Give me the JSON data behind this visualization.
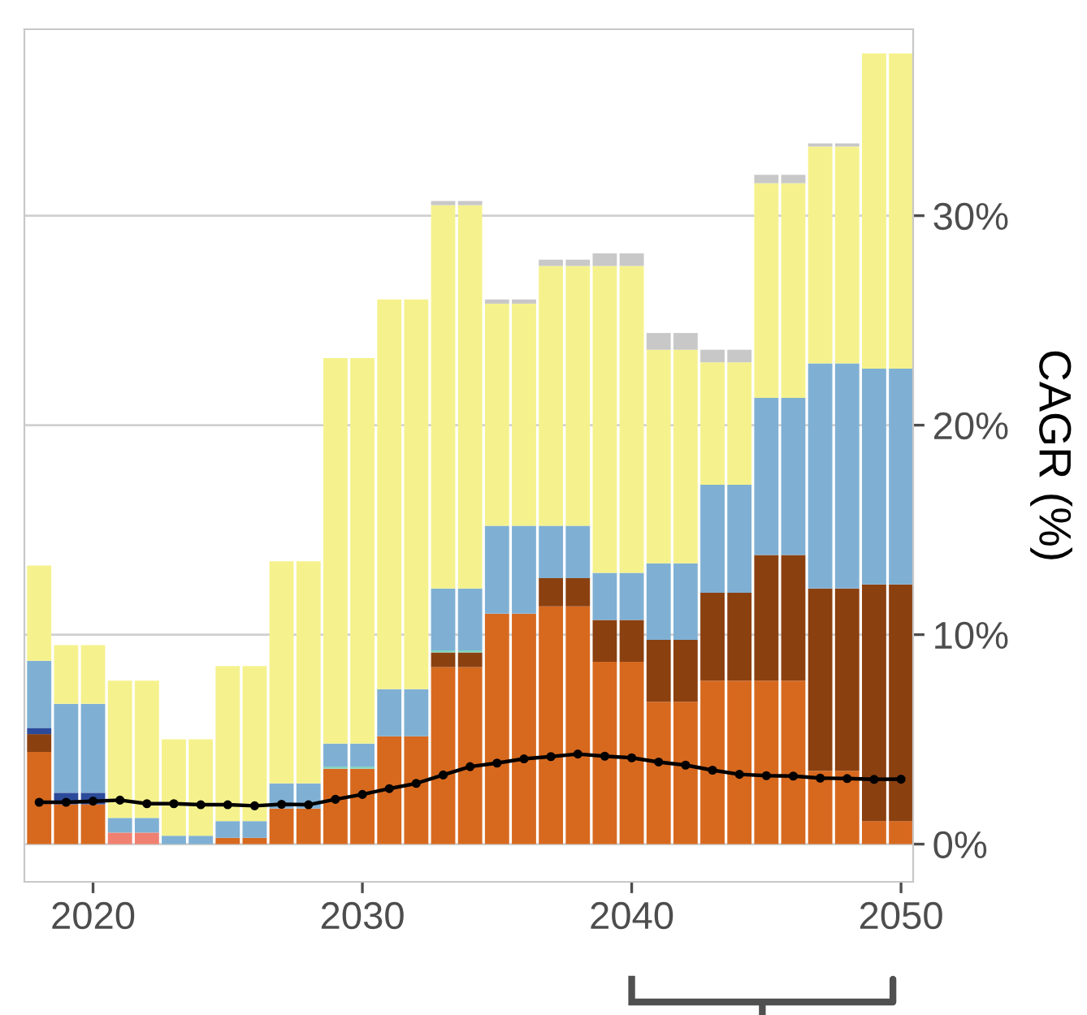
{
  "chart_data": {
    "type": "bar",
    "stacked": true,
    "ylabel": "CAGR (%)",
    "x": [
      2018,
      2019,
      2020,
      2021,
      2022,
      2023,
      2024,
      2025,
      2026,
      2027,
      2028,
      2029,
      2030,
      2031,
      2032,
      2033,
      2034,
      2035,
      2036,
      2037,
      2038,
      2039,
      2040,
      2041,
      2042,
      2043,
      2044,
      2045,
      2046,
      2047,
      2048,
      2049,
      2050
    ],
    "xlim": [
      2017.45,
      2050.45
    ],
    "xticks": [
      2020,
      2030,
      2040,
      2050
    ],
    "ylim": [
      -1.8,
      38.9
    ],
    "yticks": [
      {
        "value": 0,
        "label": "0%"
      },
      {
        "value": 10,
        "label": "10%"
      },
      {
        "value": 20,
        "label": "20%"
      },
      {
        "value": 30,
        "label": "30%"
      }
    ],
    "grid": "y",
    "series": [
      {
        "color": "#d7691f",
        "values": [
          4.4,
          1.9,
          1.9,
          null,
          null,
          null,
          null,
          0.3,
          0.3,
          1.7,
          1.7,
          3.6,
          3.6,
          5.15,
          5.15,
          8.45,
          8.45,
          11.0,
          11.0,
          11.35,
          11.35,
          8.7,
          8.7,
          6.8,
          6.8,
          7.8,
          7.8,
          7.8,
          7.8,
          3.5,
          3.5,
          1.1,
          1.1
        ]
      },
      {
        "color": "#f08070",
        "values": [
          null,
          null,
          null,
          0.55,
          0.55,
          null,
          null,
          null,
          null,
          null,
          null,
          null,
          null,
          null,
          null,
          null,
          null,
          null,
          null,
          null,
          null,
          null,
          null,
          null,
          null,
          null,
          null,
          null,
          null,
          null,
          null,
          null,
          null
        ]
      },
      {
        "color": "#8b4010",
        "values": [
          0.85,
          null,
          null,
          null,
          null,
          null,
          null,
          null,
          null,
          null,
          null,
          null,
          null,
          null,
          null,
          0.7,
          0.7,
          null,
          null,
          1.35,
          1.35,
          2.0,
          2.0,
          2.95,
          2.95,
          4.2,
          4.2,
          6.0,
          6.0,
          8.7,
          8.7,
          11.3,
          11.3
        ]
      },
      {
        "color": "#7fd4c0",
        "values": [
          null,
          null,
          null,
          null,
          null,
          null,
          null,
          null,
          null,
          null,
          null,
          0.1,
          0.1,
          null,
          null,
          0.1,
          0.1,
          null,
          null,
          null,
          null,
          null,
          null,
          null,
          null,
          null,
          null,
          null,
          null,
          null,
          null,
          null,
          null
        ]
      },
      {
        "color": "#2b4a9a",
        "values": [
          0.3,
          0.55,
          0.55,
          null,
          null,
          null,
          null,
          null,
          null,
          null,
          null,
          null,
          null,
          null,
          null,
          null,
          null,
          null,
          null,
          null,
          null,
          null,
          null,
          null,
          null,
          null,
          null,
          null,
          null,
          null,
          null,
          null,
          null
        ]
      },
      {
        "color": "#7fb0d4",
        "values": [
          3.2,
          4.25,
          4.25,
          0.7,
          0.7,
          0.4,
          0.4,
          0.8,
          0.8,
          1.2,
          1.2,
          1.1,
          1.1,
          2.25,
          2.25,
          2.95,
          2.95,
          4.2,
          4.2,
          2.5,
          2.5,
          2.25,
          2.25,
          3.65,
          3.65,
          5.15,
          5.15,
          7.5,
          7.5,
          10.75,
          10.75,
          10.3,
          10.3
        ]
      },
      {
        "color": "#f5f28d",
        "values": [
          4.55,
          2.8,
          2.8,
          6.55,
          6.55,
          4.6,
          4.6,
          7.4,
          7.4,
          10.6,
          10.6,
          18.4,
          18.4,
          18.6,
          18.6,
          18.3,
          18.3,
          10.6,
          10.6,
          12.4,
          12.4,
          14.65,
          14.65,
          10.2,
          10.2,
          5.85,
          5.85,
          10.25,
          10.25,
          10.35,
          10.35,
          15.05,
          15.05
        ]
      },
      {
        "color": "#c8c8c8",
        "values": [
          null,
          null,
          null,
          null,
          null,
          null,
          null,
          null,
          null,
          null,
          null,
          null,
          null,
          null,
          null,
          0.2,
          0.2,
          0.2,
          0.2,
          0.3,
          0.3,
          0.6,
          0.6,
          0.8,
          0.8,
          0.6,
          0.6,
          0.4,
          0.4,
          0.15,
          0.15,
          null,
          null
        ]
      },
      {
        "type": "line",
        "marker": "circle",
        "color": "#000000",
        "values": [
          2.0,
          2.0,
          2.05,
          2.1,
          1.93,
          1.93,
          1.88,
          1.88,
          1.83,
          1.9,
          1.88,
          2.14,
          2.37,
          2.65,
          2.9,
          3.3,
          3.7,
          3.87,
          4.07,
          4.18,
          4.3,
          4.2,
          4.12,
          3.92,
          3.77,
          3.53,
          3.33,
          3.27,
          3.25,
          3.15,
          3.13,
          3.09,
          3.1
        ]
      }
    ]
  }
}
